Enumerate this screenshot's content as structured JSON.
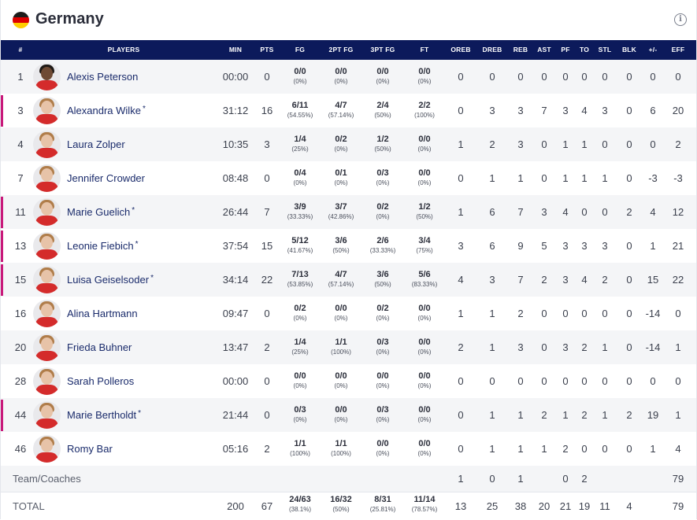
{
  "team": {
    "name": "Germany",
    "info_icon": "info-icon",
    "flag_colors": [
      "#1d1d1b",
      "#dd0000",
      "#ffce00"
    ]
  },
  "columns": [
    "#",
    "PLAYERS",
    "MIN",
    "PTS",
    "FG",
    "2PT FG",
    "3PT FG",
    "FT",
    "OREB",
    "DREB",
    "REB",
    "AST",
    "PF",
    "TO",
    "STL",
    "BLK",
    "+/-",
    "EFF"
  ],
  "players": [
    {
      "num": "1",
      "name": "Alexis Peterson",
      "starter": false,
      "min": "00:00",
      "pts": "0",
      "fg": "0/0",
      "fg_pct": "(0%)",
      "fg2": "0/0",
      "fg2_pct": "(0%)",
      "fg3": "0/0",
      "fg3_pct": "(0%)",
      "ft": "0/0",
      "ft_pct": "(0%)",
      "oreb": "0",
      "dreb": "0",
      "reb": "0",
      "ast": "0",
      "pf": "0",
      "to": "0",
      "stl": "0",
      "blk": "0",
      "pm": "0",
      "eff": "0"
    },
    {
      "num": "3",
      "name": "Alexandra Wilke",
      "starter": true,
      "min": "31:12",
      "pts": "16",
      "fg": "6/11",
      "fg_pct": "(54.55%)",
      "fg2": "4/7",
      "fg2_pct": "(57.14%)",
      "fg3": "2/4",
      "fg3_pct": "(50%)",
      "ft": "2/2",
      "ft_pct": "(100%)",
      "oreb": "0",
      "dreb": "3",
      "reb": "3",
      "ast": "7",
      "pf": "3",
      "to": "4",
      "stl": "3",
      "blk": "0",
      "pm": "6",
      "eff": "20"
    },
    {
      "num": "4",
      "name": "Laura Zolper",
      "starter": false,
      "min": "10:35",
      "pts": "3",
      "fg": "1/4",
      "fg_pct": "(25%)",
      "fg2": "0/2",
      "fg2_pct": "(0%)",
      "fg3": "1/2",
      "fg3_pct": "(50%)",
      "ft": "0/0",
      "ft_pct": "(0%)",
      "oreb": "1",
      "dreb": "2",
      "reb": "3",
      "ast": "0",
      "pf": "1",
      "to": "1",
      "stl": "0",
      "blk": "0",
      "pm": "0",
      "eff": "2"
    },
    {
      "num": "7",
      "name": "Jennifer Crowder",
      "starter": false,
      "min": "08:48",
      "pts": "0",
      "fg": "0/4",
      "fg_pct": "(0%)",
      "fg2": "0/1",
      "fg2_pct": "(0%)",
      "fg3": "0/3",
      "fg3_pct": "(0%)",
      "ft": "0/0",
      "ft_pct": "(0%)",
      "oreb": "0",
      "dreb": "1",
      "reb": "1",
      "ast": "0",
      "pf": "1",
      "to": "1",
      "stl": "1",
      "blk": "0",
      "pm": "-3",
      "eff": "-3"
    },
    {
      "num": "11",
      "name": "Marie Guelich",
      "starter": true,
      "min": "26:44",
      "pts": "7",
      "fg": "3/9",
      "fg_pct": "(33.33%)",
      "fg2": "3/7",
      "fg2_pct": "(42.86%)",
      "fg3": "0/2",
      "fg3_pct": "(0%)",
      "ft": "1/2",
      "ft_pct": "(50%)",
      "oreb": "1",
      "dreb": "6",
      "reb": "7",
      "ast": "3",
      "pf": "4",
      "to": "0",
      "stl": "0",
      "blk": "2",
      "pm": "4",
      "eff": "12"
    },
    {
      "num": "13",
      "name": "Leonie Fiebich",
      "starter": true,
      "min": "37:54",
      "pts": "15",
      "fg": "5/12",
      "fg_pct": "(41.67%)",
      "fg2": "3/6",
      "fg2_pct": "(50%)",
      "fg3": "2/6",
      "fg3_pct": "(33.33%)",
      "ft": "3/4",
      "ft_pct": "(75%)",
      "oreb": "3",
      "dreb": "6",
      "reb": "9",
      "ast": "5",
      "pf": "3",
      "to": "3",
      "stl": "3",
      "blk": "0",
      "pm": "1",
      "eff": "21"
    },
    {
      "num": "15",
      "name": "Luisa Geiselsoder",
      "starter": true,
      "min": "34:14",
      "pts": "22",
      "fg": "7/13",
      "fg_pct": "(53.85%)",
      "fg2": "4/7",
      "fg2_pct": "(57.14%)",
      "fg3": "3/6",
      "fg3_pct": "(50%)",
      "ft": "5/6",
      "ft_pct": "(83.33%)",
      "oreb": "4",
      "dreb": "3",
      "reb": "7",
      "ast": "2",
      "pf": "3",
      "to": "4",
      "stl": "2",
      "blk": "0",
      "pm": "15",
      "eff": "22"
    },
    {
      "num": "16",
      "name": "Alina Hartmann",
      "starter": false,
      "min": "09:47",
      "pts": "0",
      "fg": "0/2",
      "fg_pct": "(0%)",
      "fg2": "0/0",
      "fg2_pct": "(0%)",
      "fg3": "0/2",
      "fg3_pct": "(0%)",
      "ft": "0/0",
      "ft_pct": "(0%)",
      "oreb": "1",
      "dreb": "1",
      "reb": "2",
      "ast": "0",
      "pf": "0",
      "to": "0",
      "stl": "0",
      "blk": "0",
      "pm": "-14",
      "eff": "0"
    },
    {
      "num": "20",
      "name": "Frieda Buhner",
      "starter": false,
      "min": "13:47",
      "pts": "2",
      "fg": "1/4",
      "fg_pct": "(25%)",
      "fg2": "1/1",
      "fg2_pct": "(100%)",
      "fg3": "0/3",
      "fg3_pct": "(0%)",
      "ft": "0/0",
      "ft_pct": "(0%)",
      "oreb": "2",
      "dreb": "1",
      "reb": "3",
      "ast": "0",
      "pf": "3",
      "to": "2",
      "stl": "1",
      "blk": "0",
      "pm": "-14",
      "eff": "1"
    },
    {
      "num": "28",
      "name": "Sarah Polleros",
      "starter": false,
      "min": "00:00",
      "pts": "0",
      "fg": "0/0",
      "fg_pct": "(0%)",
      "fg2": "0/0",
      "fg2_pct": "(0%)",
      "fg3": "0/0",
      "fg3_pct": "(0%)",
      "ft": "0/0",
      "ft_pct": "(0%)",
      "oreb": "0",
      "dreb": "0",
      "reb": "0",
      "ast": "0",
      "pf": "0",
      "to": "0",
      "stl": "0",
      "blk": "0",
      "pm": "0",
      "eff": "0"
    },
    {
      "num": "44",
      "name": "Marie Bertholdt",
      "starter": true,
      "min": "21:44",
      "pts": "0",
      "fg": "0/3",
      "fg_pct": "(0%)",
      "fg2": "0/0",
      "fg2_pct": "(0%)",
      "fg3": "0/3",
      "fg3_pct": "(0%)",
      "ft": "0/0",
      "ft_pct": "(0%)",
      "oreb": "0",
      "dreb": "1",
      "reb": "1",
      "ast": "2",
      "pf": "1",
      "to": "2",
      "stl": "1",
      "blk": "2",
      "pm": "19",
      "eff": "1"
    },
    {
      "num": "46",
      "name": "Romy Bar",
      "starter": false,
      "min": "05:16",
      "pts": "2",
      "fg": "1/1",
      "fg_pct": "(100%)",
      "fg2": "1/1",
      "fg2_pct": "(100%)",
      "fg3": "0/0",
      "fg3_pct": "(0%)",
      "ft": "0/0",
      "ft_pct": "(0%)",
      "oreb": "0",
      "dreb": "1",
      "reb": "1",
      "ast": "1",
      "pf": "2",
      "to": "0",
      "stl": "0",
      "blk": "0",
      "pm": "1",
      "eff": "4"
    }
  ],
  "team_coaches": {
    "label": "Team/Coaches",
    "oreb": "1",
    "dreb": "0",
    "reb": "1",
    "ast": "",
    "pf": "0",
    "to": "2",
    "stl": "",
    "blk": "",
    "pm": "",
    "eff": "79"
  },
  "totals": {
    "label": "TOTAL",
    "min": "200",
    "pts": "67",
    "fg": "24/63",
    "fg_pct": "(38.1%)",
    "fg2": "16/32",
    "fg2_pct": "(50%)",
    "fg3": "8/31",
    "fg3_pct": "(25.81%)",
    "ft": "11/14",
    "ft_pct": "(78.57%)",
    "oreb": "13",
    "dreb": "25",
    "reb": "38",
    "ast": "20",
    "pf": "21",
    "to": "19",
    "stl": "11",
    "blk": "4",
    "eff": "79"
  },
  "starter_mark": "*",
  "accent_colors": {
    "header_bg": "#0c1a5b",
    "starter_bar": "#c8197a",
    "player_link": "#1a2b6b"
  }
}
